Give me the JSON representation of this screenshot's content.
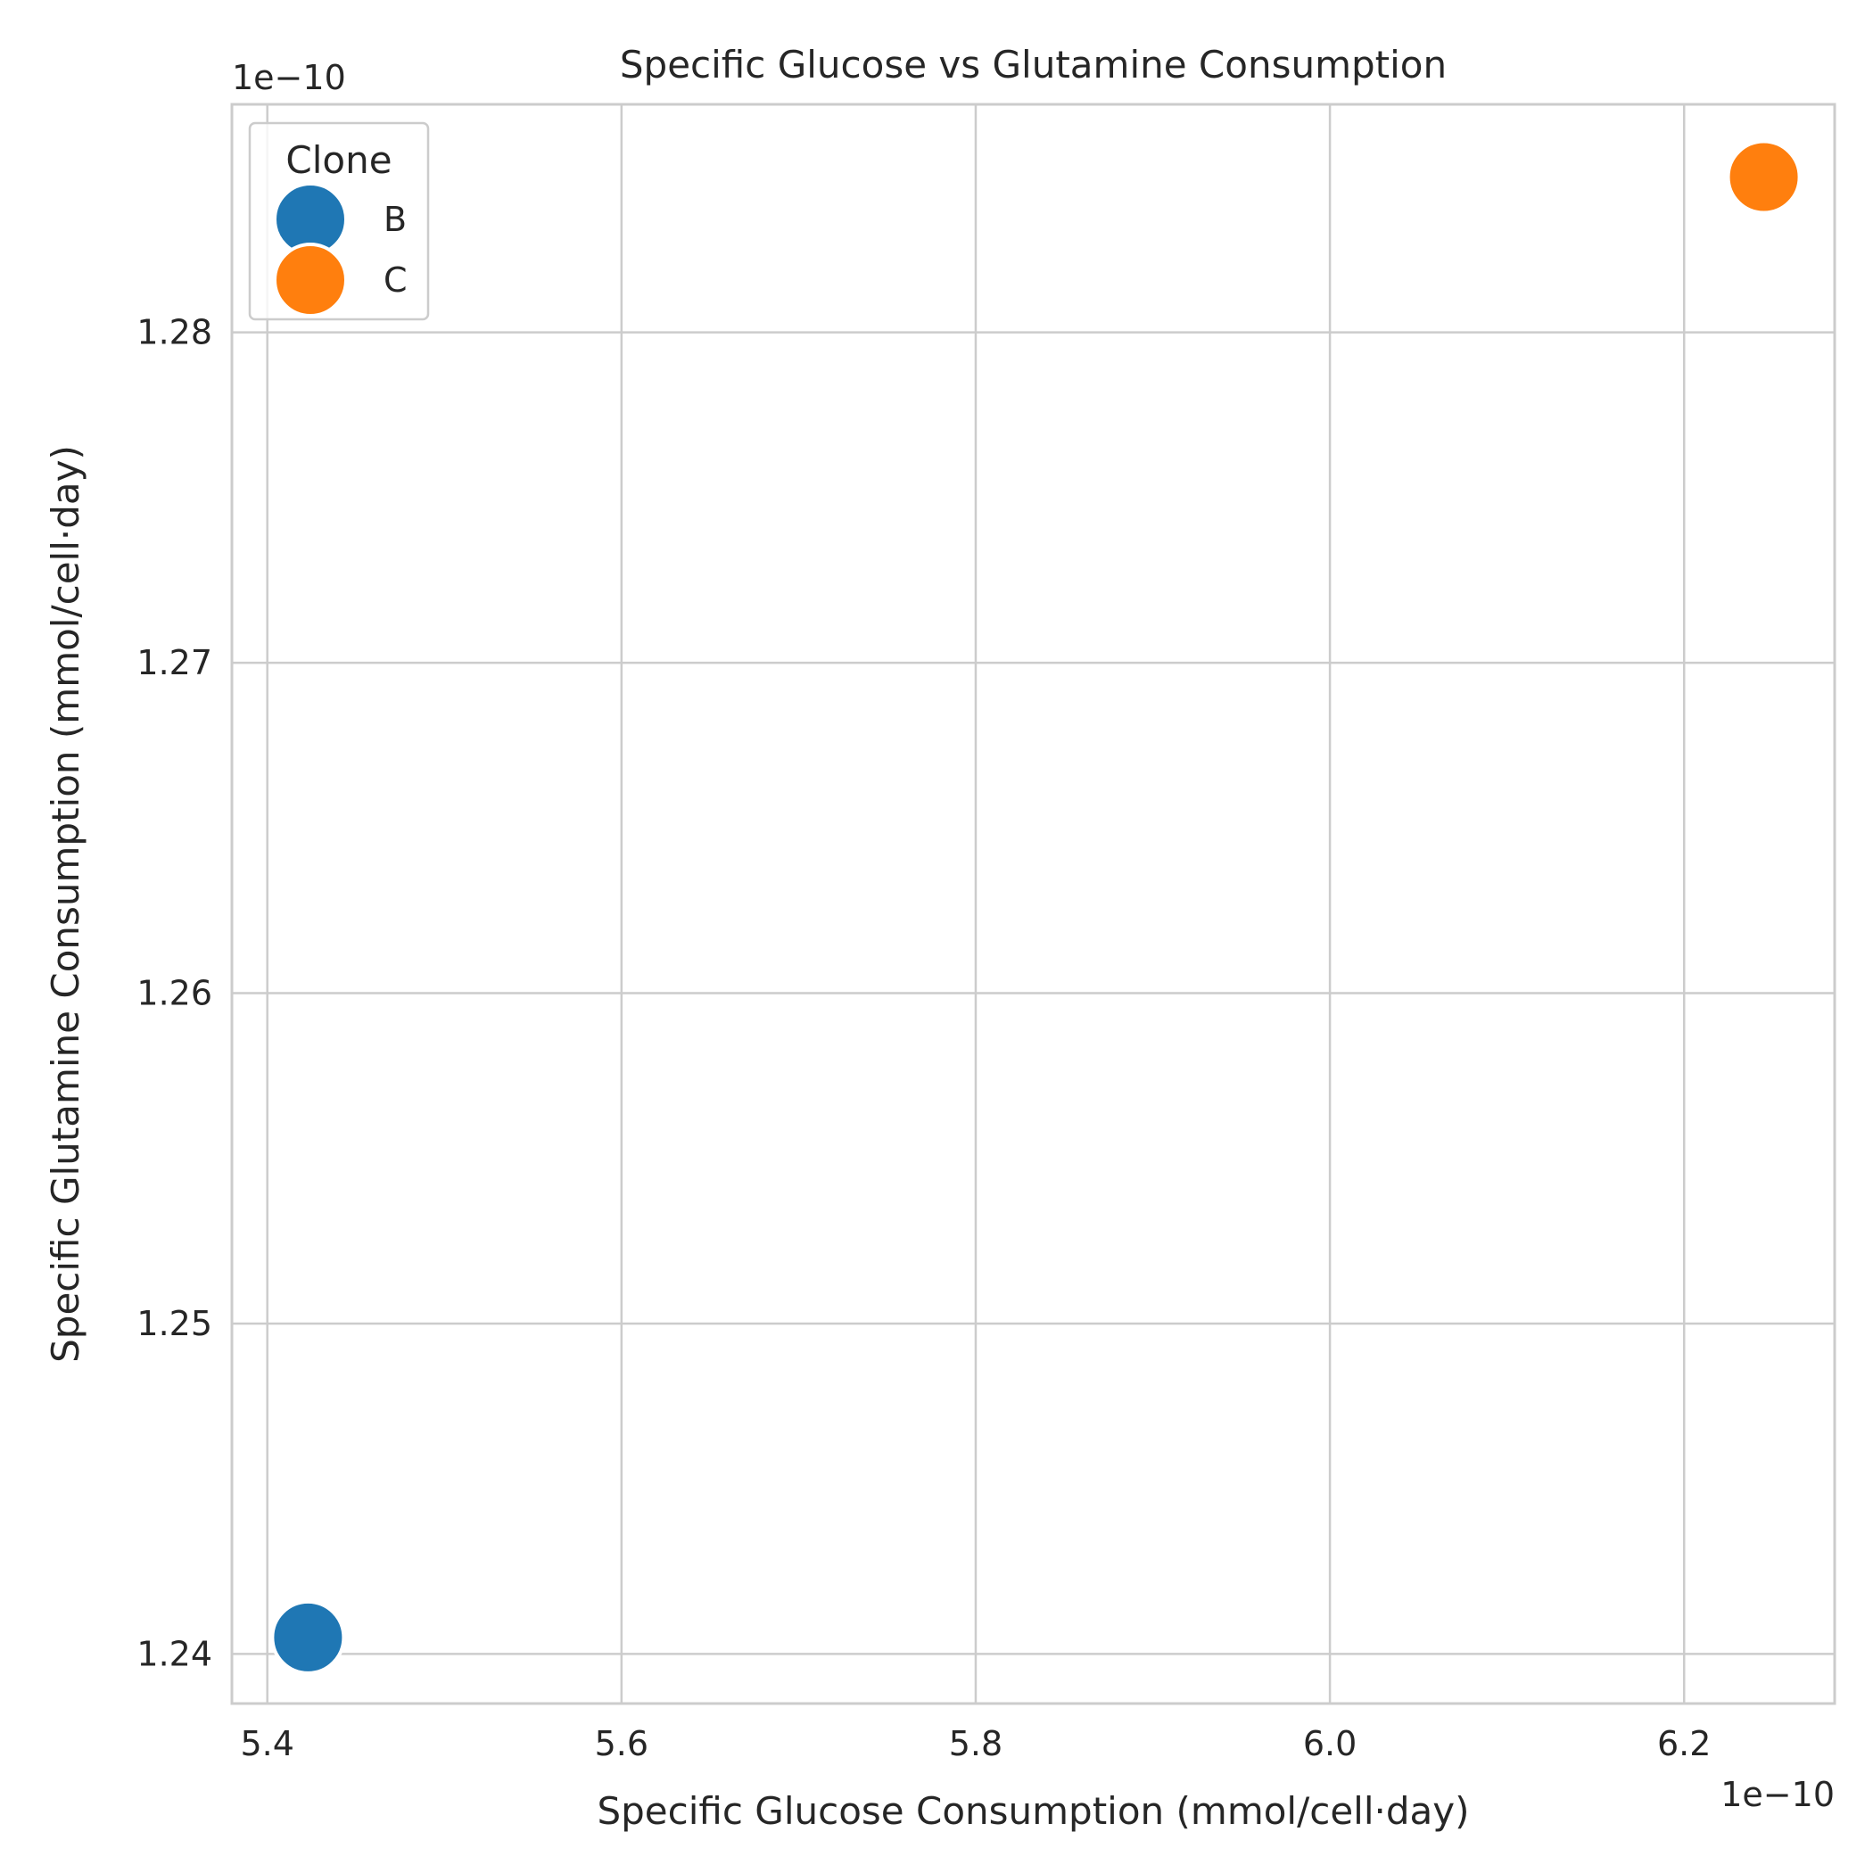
{
  "chart_data": {
    "type": "scatter",
    "title": "Specific Glucose vs Glutamine Consumption",
    "xlabel": "Specific Glucose Consumption (mmol/cell·day)",
    "ylabel": "Specific Glutamine Consumption (mmol/cell·day)",
    "x_offset_label": "1e−10",
    "y_offset_label": "1e−10",
    "xlim": [
      5.38,
      6.285
    ],
    "ylim": [
      1.2385,
      1.2869
    ],
    "x_ticks": [
      5.4,
      5.6,
      5.8,
      6.0,
      6.2
    ],
    "x_tick_labels": [
      "5.4",
      "5.6",
      "5.8",
      "6.0",
      "6.2"
    ],
    "y_ticks": [
      1.24,
      1.25,
      1.26,
      1.27,
      1.28
    ],
    "y_tick_labels": [
      "1.24",
      "1.25",
      "1.26",
      "1.27",
      "1.28"
    ],
    "grid": true,
    "legend": {
      "title": "Clone",
      "placement": "top-left"
    },
    "series": [
      {
        "name": "B",
        "color": "#1f77b4",
        "points": [
          {
            "x": 5.423,
            "y": 1.2405
          }
        ]
      },
      {
        "name": "C",
        "color": "#ff7f0e",
        "points": [
          {
            "x": 6.245,
            "y": 1.2847
          }
        ]
      }
    ]
  }
}
